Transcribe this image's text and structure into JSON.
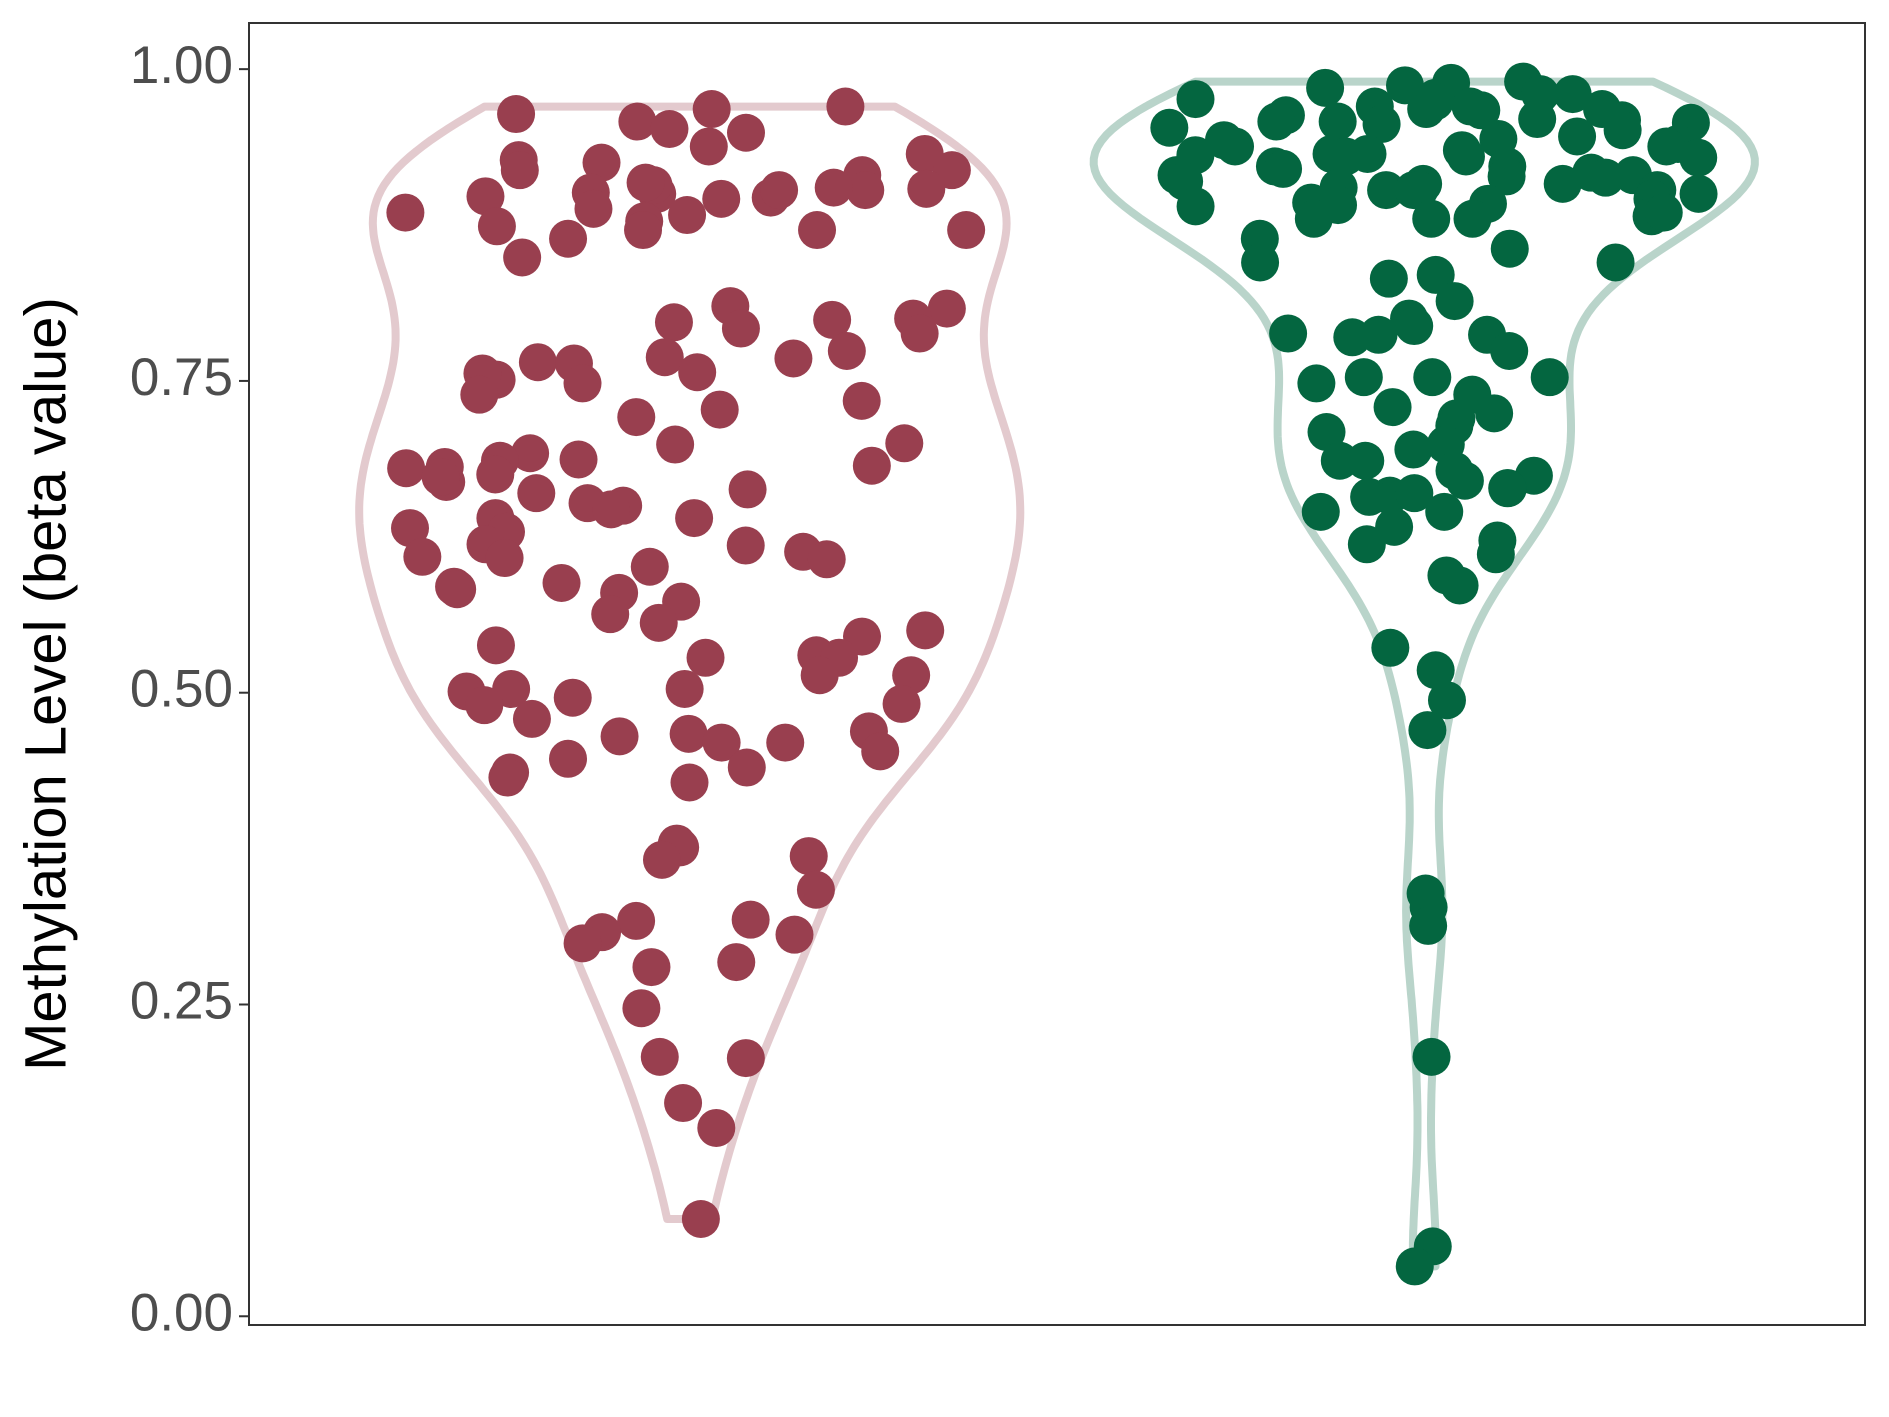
{
  "chart_data": {
    "type": "violin",
    "y_label": "Methylation Level (beta value)",
    "ylim": [
      -0.007,
      1.037
    ],
    "yticks": [
      {
        "value": 0,
        "label": "0.00"
      },
      0.25,
      {
        "value": 0.5,
        "label": "0.50"
      },
      0.75,
      {
        "value": 1,
        "label": "1.00"
      }
    ],
    "series": [
      {
        "color": "#993f4f",
        "values": [
          0.97,
          0.964,
          0.968,
          0.958,
          0.952,
          0.949,
          0.927,
          0.925,
          0.938,
          0.932,
          0.915,
          0.919,
          0.919,
          0.903,
          0.9,
          0.904,
          0.907,
          0.897,
          0.901,
          0.905,
          0.896,
          0.903,
          0.909,
          0.898,
          0.888,
          0.883,
          0.885,
          0.874,
          0.878,
          0.871,
          0.871,
          0.864,
          0.871,
          0.849,
          0.81,
          0.808,
          0.8,
          0.797,
          0.799,
          0.792,
          0.788,
          0.769,
          0.765,
          0.768,
          0.774,
          0.764,
          0.757,
          0.751,
          0.756,
          0.748,
          0.739,
          0.734,
          0.727,
          0.721,
          0.7,
          0.699,
          0.692,
          0.687,
          0.686,
          0.675,
          0.681,
          0.682,
          0.68,
          0.669,
          0.673,
          0.663,
          0.66,
          0.65,
          0.652,
          0.647,
          0.64,
          0.64,
          0.632,
          0.629,
          0.618,
          0.619,
          0.613,
          0.608,
          0.609,
          0.607,
          0.601,
          0.585,
          0.588,
          0.583,
          0.58,
          0.573,
          0.563,
          0.556,
          0.55,
          0.545,
          0.538,
          0.528,
          0.53,
          0.528,
          0.514,
          0.514,
          0.503,
          0.501,
          0.503,
          0.496,
          0.491,
          0.49,
          0.479,
          0.467,
          0.469,
          0.465,
          0.46,
          0.46,
          0.453,
          0.447,
          0.44,
          0.436,
          0.432,
          0.428,
          0.379,
          0.376,
          0.369,
          0.366,
          0.342,
          0.317,
          0.318,
          0.306,
          0.308,
          0.299,
          0.284,
          0.28,
          0.247,
          0.207,
          0.208,
          0.171,
          0.151,
          0.078
        ]
      },
      {
        "color": "#046640",
        "values": [
          0.99,
          0.989,
          0.987,
          0.985,
          0.98,
          0.98,
          0.968,
          0.977,
          0.974,
          0.976,
          0.97,
          0.967,
          0.97,
          0.968,
          0.958,
          0.956,
          0.963,
          0.957,
          0.96,
          0.959,
          0.951,
          0.953,
          0.944,
          0.94,
          0.958,
          0.946,
          0.943,
          0.938,
          0.938,
          0.932,
          0.935,
          0.93,
          0.932,
          0.93,
          0.931,
          0.922,
          0.929,
          0.922,
          0.92,
          0.917,
          0.915,
          0.914,
          0.915,
          0.908,
          0.913,
          0.908,
          0.91,
          0.903,
          0.9,
          0.903,
          0.903,
          0.905,
          0.903,
          0.89,
          0.896,
          0.893,
          0.891,
          0.892,
          0.88,
          0.88,
          0.88,
          0.882,
          0.885,
          0.864,
          0.856,
          0.845,
          0.845,
          0.835,
          0.832,
          0.814,
          0.8,
          0.794,
          0.788,
          0.787,
          0.787,
          0.785,
          0.774,
          0.753,
          0.753,
          0.748,
          0.753,
          0.729,
          0.739,
          0.724,
          0.72,
          0.714,
          0.709,
          0.695,
          0.699,
          0.686,
          0.686,
          0.674,
          0.678,
          0.67,
          0.664,
          0.658,
          0.664,
          0.66,
          0.657,
          0.645,
          0.645,
          0.633,
          0.622,
          0.619,
          0.611,
          0.594,
          0.586,
          0.536,
          0.518,
          0.494,
          0.47,
          0.339,
          0.328,
          0.313,
          0.208,
          0.056,
          0.04
        ]
      }
    ]
  }
}
